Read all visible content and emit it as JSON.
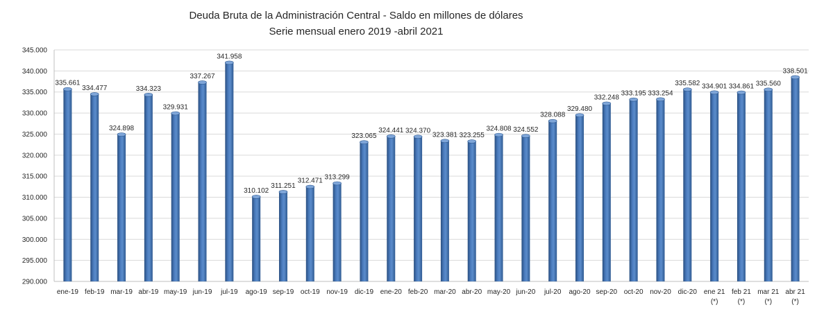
{
  "chart_data": {
    "type": "bar",
    "title": "Deuda Bruta de la Administración Central - Saldo en millones de dólares",
    "subtitle": "Serie mensual enero 2019 -abril 2021",
    "xlabel": "",
    "ylabel": "",
    "ylim": [
      290000,
      345000
    ],
    "y_ticks": [
      290000,
      295000,
      300000,
      305000,
      310000,
      315000,
      320000,
      325000,
      330000,
      335000,
      340000,
      345000
    ],
    "y_tick_labels": [
      "290.000",
      "295.000",
      "300.000",
      "305.000",
      "310.000",
      "315.000",
      "320.000",
      "325.000",
      "330.000",
      "335.000",
      "340.000",
      "345.000"
    ],
    "grid": true,
    "bar_color": "#3f6fae",
    "categories": [
      "ene-19",
      "feb-19",
      "mar-19",
      "abr-19",
      "may-19",
      "jun-19",
      "jul-19",
      "ago-19",
      "sep-19",
      "oct-19",
      "nov-19",
      "dic-19",
      "ene-20",
      "feb-20",
      "mar-20",
      "abr-20",
      "may-20",
      "jun-20",
      "jul-20",
      "ago-20",
      "sep-20",
      "oct-20",
      "nov-20",
      "dic-20",
      "ene 21",
      "feb 21",
      "mar 21",
      "abr 21"
    ],
    "category_notes": [
      "",
      "",
      "",
      "",
      "",
      "",
      "",
      "",
      "",
      "",
      "",
      "",
      "",
      "",
      "",
      "",
      "",
      "",
      "",
      "",
      "",
      "",
      "",
      "",
      "(*)",
      "(*)",
      "(*)",
      "(*)"
    ],
    "values": [
      335661,
      334477,
      324898,
      334323,
      329931,
      337267,
      341958,
      310102,
      311251,
      312471,
      313299,
      323065,
      324441,
      324370,
      323381,
      323255,
      324808,
      324552,
      328088,
      329480,
      332248,
      333195,
      333254,
      335582,
      334901,
      334861,
      335560,
      338501
    ],
    "value_labels": [
      "335.661",
      "334.477",
      "324.898",
      "334.323",
      "329.931",
      "337.267",
      "341.958",
      "310.102",
      "311.251",
      "312.471",
      "313.299",
      "323.065",
      "324.441",
      "324.370",
      "323.381",
      "323.255",
      "324.808",
      "324.552",
      "328.088",
      "329.480",
      "332.248",
      "333.195",
      "333.254",
      "335.582",
      "334.901",
      "334.861",
      "335.560",
      "338.501"
    ]
  }
}
